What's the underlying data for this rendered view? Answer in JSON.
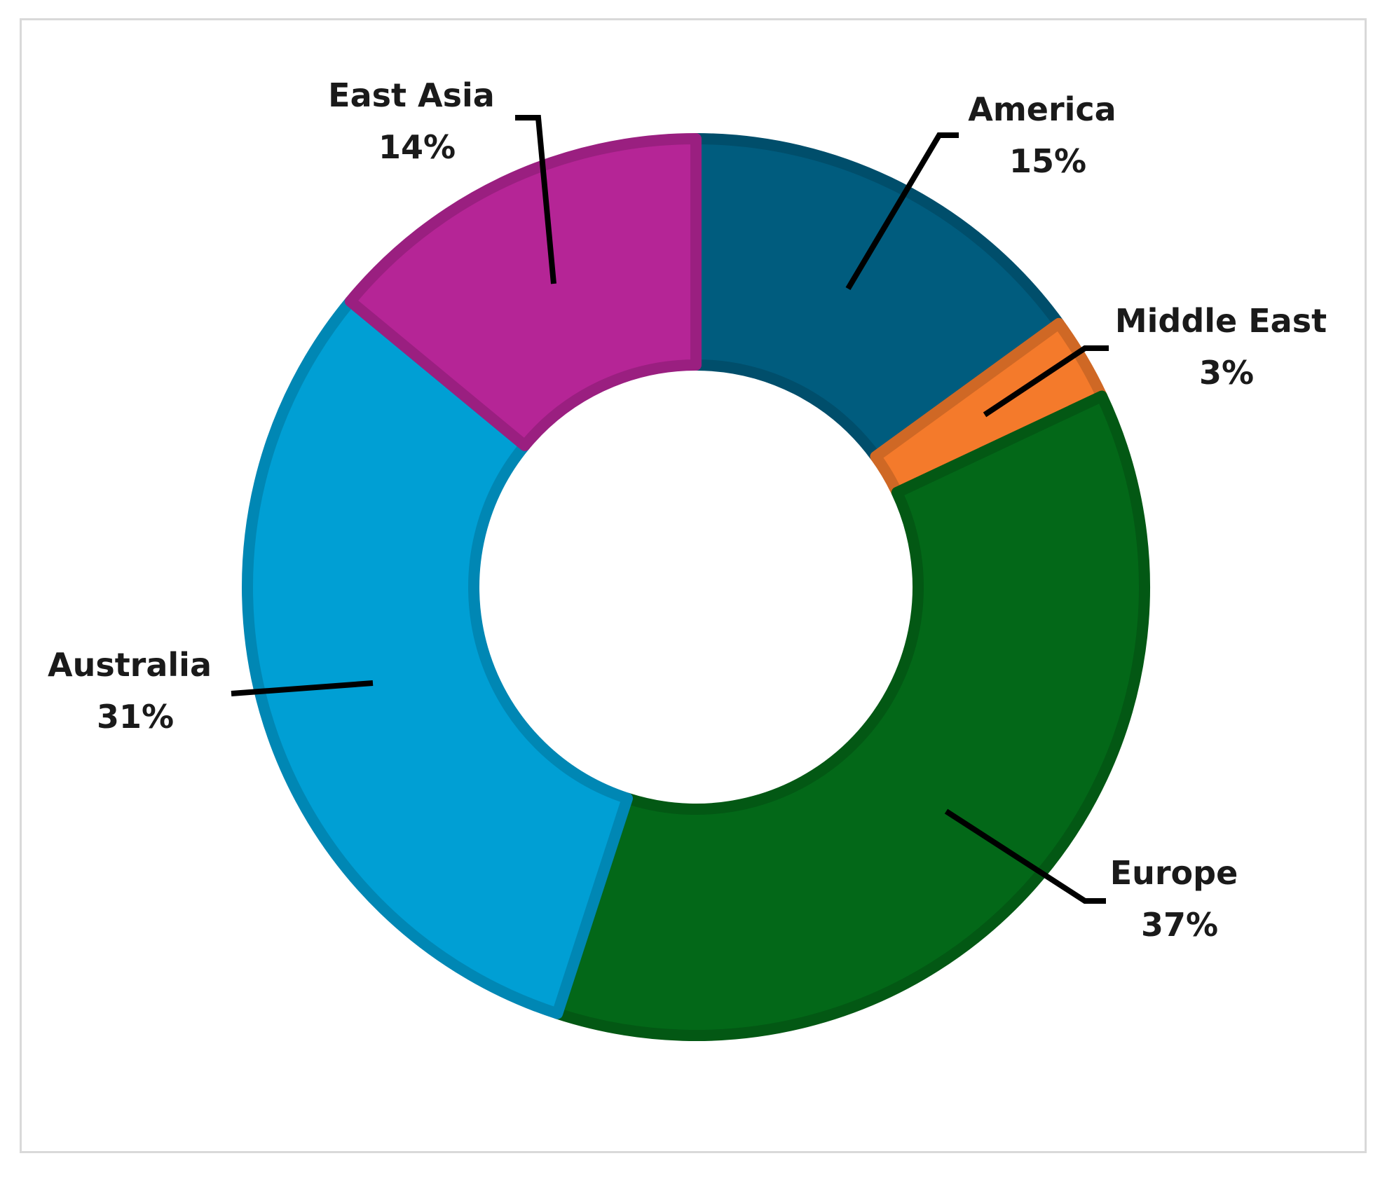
{
  "chart_data": {
    "type": "pie",
    "variant": "donut",
    "title": "",
    "legend": "none",
    "slices": [
      {
        "label": "America",
        "value": 15,
        "value_label": "15%",
        "color": "#005C7E"
      },
      {
        "label": "Middle East",
        "value": 3,
        "value_label": "3%",
        "color": "#F47A2B"
      },
      {
        "label": "Europe",
        "value": 37,
        "value_label": "37%",
        "color": "#036818"
      },
      {
        "label": "Australia",
        "value": 31,
        "value_label": "31%",
        "color": "#009FD4"
      },
      {
        "label": "East Asia",
        "value": 14,
        "value_label": "14%",
        "color": "#B52596"
      }
    ]
  }
}
